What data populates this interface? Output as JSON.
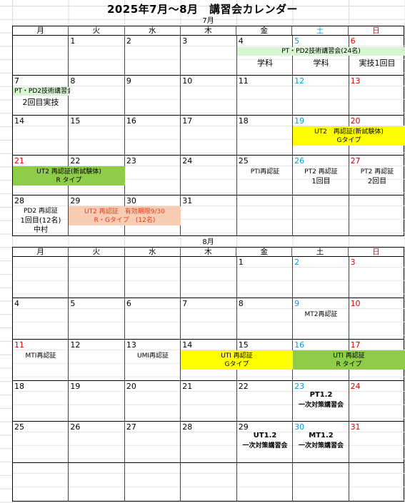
{
  "title": "2025年7月～8月　講習会カレンダー",
  "weekdays": [
    "月",
    "火",
    "水",
    "木",
    "金",
    "土",
    "日"
  ],
  "july": {
    "label": "7月",
    "days": {
      "w1": [
        "",
        "1",
        "2",
        "3",
        "4",
        "5",
        "6"
      ],
      "w2": [
        "7",
        "8",
        "9",
        "10",
        "11",
        "12",
        "13"
      ],
      "w3": [
        "14",
        "15",
        "16",
        "17",
        "18",
        "19",
        "20"
      ],
      "w4": [
        "21",
        "22",
        "23",
        "24",
        "25",
        "26",
        "27"
      ],
      "w5": [
        "28",
        "29",
        "30",
        "31",
        "",
        "",
        ""
      ]
    },
    "events": {
      "pt_pd2_24": "PT・PD2技術講習会(24名)",
      "gakka_fri": "学科",
      "gakka_sat": "学科",
      "jitsugi1": "実技1回目",
      "pt_pd2_session": "PT・PD2技術講習会",
      "jitsugi2": "2回目実技",
      "ut2_new_sat_l1": "UT2　再認証(新試験体)",
      "ut2_new_sat_l2": "Gタイプ",
      "ut2_new_mon_l1": "UT2 再認証(新試験体)",
      "ut2_new_mon_l2": "R タイプ",
      "pt1_recert": "PTⅠ再認証",
      "pt2_sat_l1": "PT2 再認証",
      "pt2_sat_l2": "1回目",
      "pt2_sun_l1": "PT2 再認証",
      "pt2_sun_l2": "2回目",
      "pd2_l1": "PD2 再認証",
      "pd2_l2": "1回目(12名)",
      "pd2_l3": "中村",
      "ut2_exp_l1": "UT2 再認証　有効期限9/30",
      "ut2_exp_l2": "R・Gタイプ　(12名)"
    }
  },
  "august": {
    "label": "8月",
    "days": {
      "w1": [
        "",
        "",
        "",
        "",
        "1",
        "2",
        "3"
      ],
      "w2": [
        "4",
        "5",
        "6",
        "7",
        "8",
        "9",
        "10"
      ],
      "w3": [
        "11",
        "12",
        "13",
        "14",
        "15",
        "16",
        "17"
      ],
      "w4": [
        "18",
        "19",
        "20",
        "21",
        "22",
        "23",
        "24"
      ],
      "w5": [
        "25",
        "26",
        "27",
        "28",
        "29",
        "30",
        "31"
      ]
    },
    "events": {
      "mt2_recert": "MT2再認証",
      "mt1_recert": "MTⅠ再認証",
      "um1_recert": "UMⅠ再認証",
      "ut1_g_l1": "UTⅠ 再認証",
      "ut1_g_l2": "Gタイプ",
      "ut1_r_l1": "UTⅠ 再認証",
      "ut1_r_l2": "R タイプ",
      "pt12_l1": "PT1.2",
      "pt12_l2": "一次対策講習会",
      "ut12_l1": "UT1.2",
      "ut12_l2": "一次対策講習会",
      "mt12_l1": "MT1.2",
      "mt12_l2": "一次対策講習会"
    }
  }
}
